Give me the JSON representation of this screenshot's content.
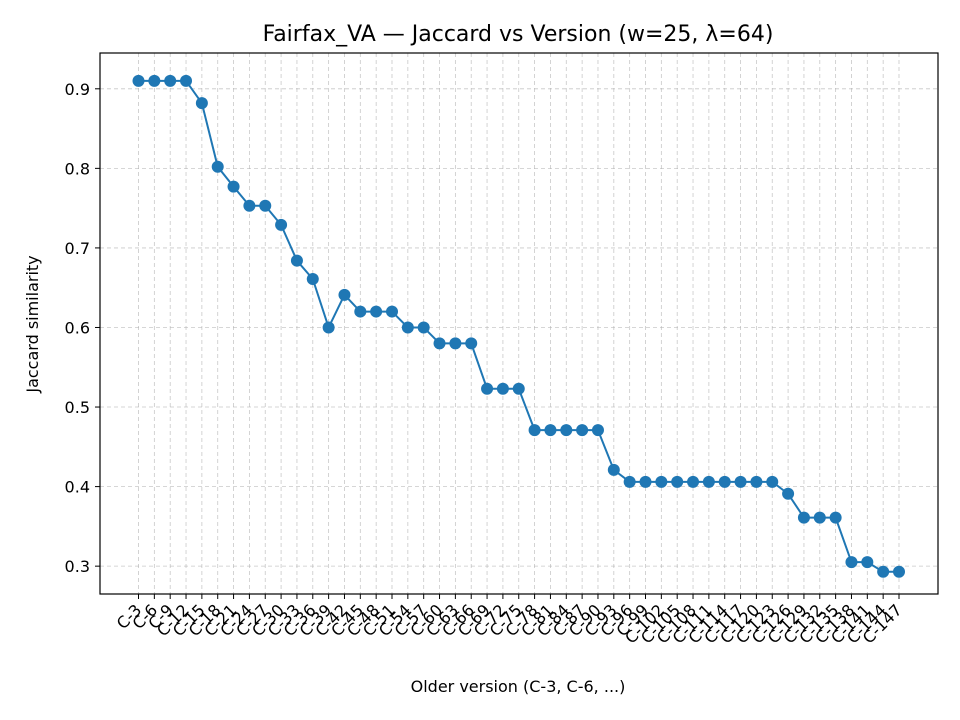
{
  "chart_data": {
    "type": "line",
    "title": "Fairfax_VA — Jaccard vs Version (w=25, λ=64)",
    "xlabel": "Older version (C-3, C-6, ...)",
    "ylabel": "Jaccard similarity",
    "ylim": [
      0.265,
      0.945
    ],
    "yticks": [
      0.3,
      0.4,
      0.5,
      0.6,
      0.7,
      0.8,
      0.9
    ],
    "ytick_labels": [
      "0.3",
      "0.4",
      "0.5",
      "0.6",
      "0.7",
      "0.8",
      "0.9"
    ],
    "grid": true,
    "color": "#1f77b4",
    "categories": [
      "C-3",
      "C-6",
      "C-9",
      "C-12",
      "C-15",
      "C-18",
      "C-21",
      "C-24",
      "C-27",
      "C-30",
      "C-33",
      "C-36",
      "C-39",
      "C-42",
      "C-45",
      "C-48",
      "C-51",
      "C-54",
      "C-57",
      "C-60",
      "C-63",
      "C-66",
      "C-69",
      "C-72",
      "C-75",
      "C-78",
      "C-81",
      "C-84",
      "C-87",
      "C-90",
      "C-93",
      "C-96",
      "C-99",
      "C-102",
      "C-105",
      "C-108",
      "C-111",
      "C-114",
      "C-117",
      "C-120",
      "C-123",
      "C-126",
      "C-129",
      "C-132",
      "C-135",
      "C-138",
      "C-141",
      "C-144",
      "C-147"
    ],
    "values": [
      0.91,
      0.91,
      0.91,
      0.91,
      0.882,
      0.802,
      0.777,
      0.753,
      0.753,
      0.729,
      0.684,
      0.661,
      0.6,
      0.641,
      0.62,
      0.62,
      0.62,
      0.6,
      0.6,
      0.58,
      0.58,
      0.58,
      0.523,
      0.523,
      0.523,
      0.471,
      0.471,
      0.471,
      0.471,
      0.471,
      0.421,
      0.406,
      0.406,
      0.406,
      0.406,
      0.406,
      0.406,
      0.406,
      0.406,
      0.406,
      0.406,
      0.391,
      0.361,
      0.361,
      0.361,
      0.305,
      0.305,
      0.293,
      0.293
    ]
  }
}
